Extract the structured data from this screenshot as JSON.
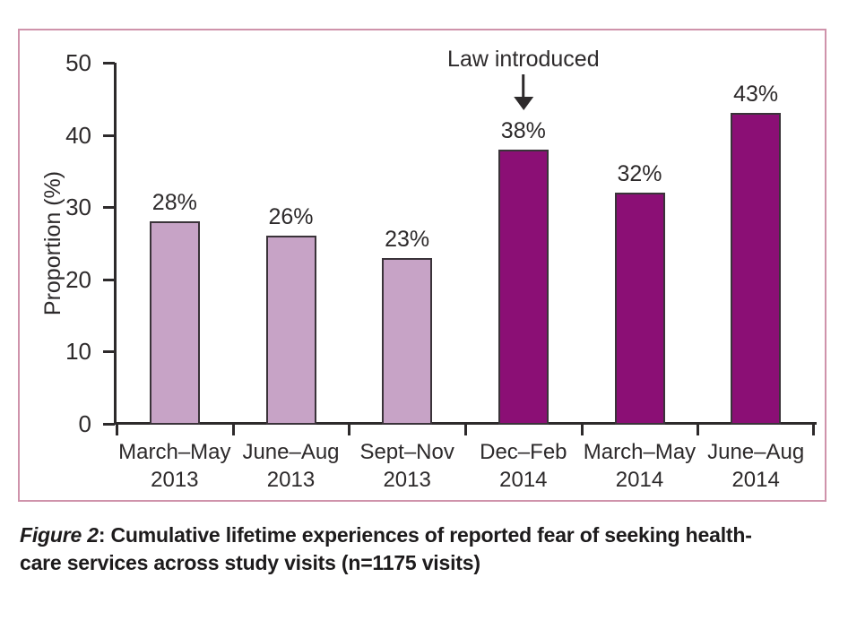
{
  "figure": {
    "border_color": "#cf93ab"
  },
  "chart_data": {
    "type": "bar",
    "title": "",
    "xlabel": "",
    "ylabel": "Proportion (%)",
    "ylim": [
      0,
      50
    ],
    "yticks": [
      0,
      10,
      20,
      30,
      40,
      50
    ],
    "grid": false,
    "legend": false,
    "axis_color": "#2d2a2b",
    "bar_border_color": "#3a3339",
    "categories": [
      "March–May 2013",
      "June–Aug 2013",
      "Sept–Nov 2013",
      "Dec–Feb 2014",
      "March–May 2014",
      "June–Aug 2014"
    ],
    "values": [
      28,
      26,
      23,
      38,
      32,
      43
    ],
    "bars": [
      {
        "category": [
          "March–May",
          "2013"
        ],
        "value": 28,
        "value_label": "28%",
        "group": "before_law"
      },
      {
        "category": [
          "June–Aug",
          "2013"
        ],
        "value": 26,
        "value_label": "26%",
        "group": "before_law"
      },
      {
        "category": [
          "Sept–Nov",
          "2013"
        ],
        "value": 23,
        "value_label": "23%",
        "group": "before_law"
      },
      {
        "category": [
          "Dec–Feb",
          "2014"
        ],
        "value": 38,
        "value_label": "38%",
        "group": "after_law"
      },
      {
        "category": [
          "March–May",
          "2014"
        ],
        "value": 32,
        "value_label": "32%",
        "group": "after_law"
      },
      {
        "category": [
          "June–Aug",
          "2014"
        ],
        "value": 43,
        "value_label": "43%",
        "group": "after_law"
      }
    ],
    "group_colors": {
      "before_law": "#c7a3c6",
      "after_law": "#8b0f75"
    },
    "annotation": {
      "text": "Law introduced",
      "target_bar_index": 3
    }
  },
  "caption": {
    "label": "Figure 2",
    "line1_rest": ": Cumulative lifetime experiences of reported fear of seeking health-",
    "line2": "care services across study visits (n=1175 visits)"
  }
}
